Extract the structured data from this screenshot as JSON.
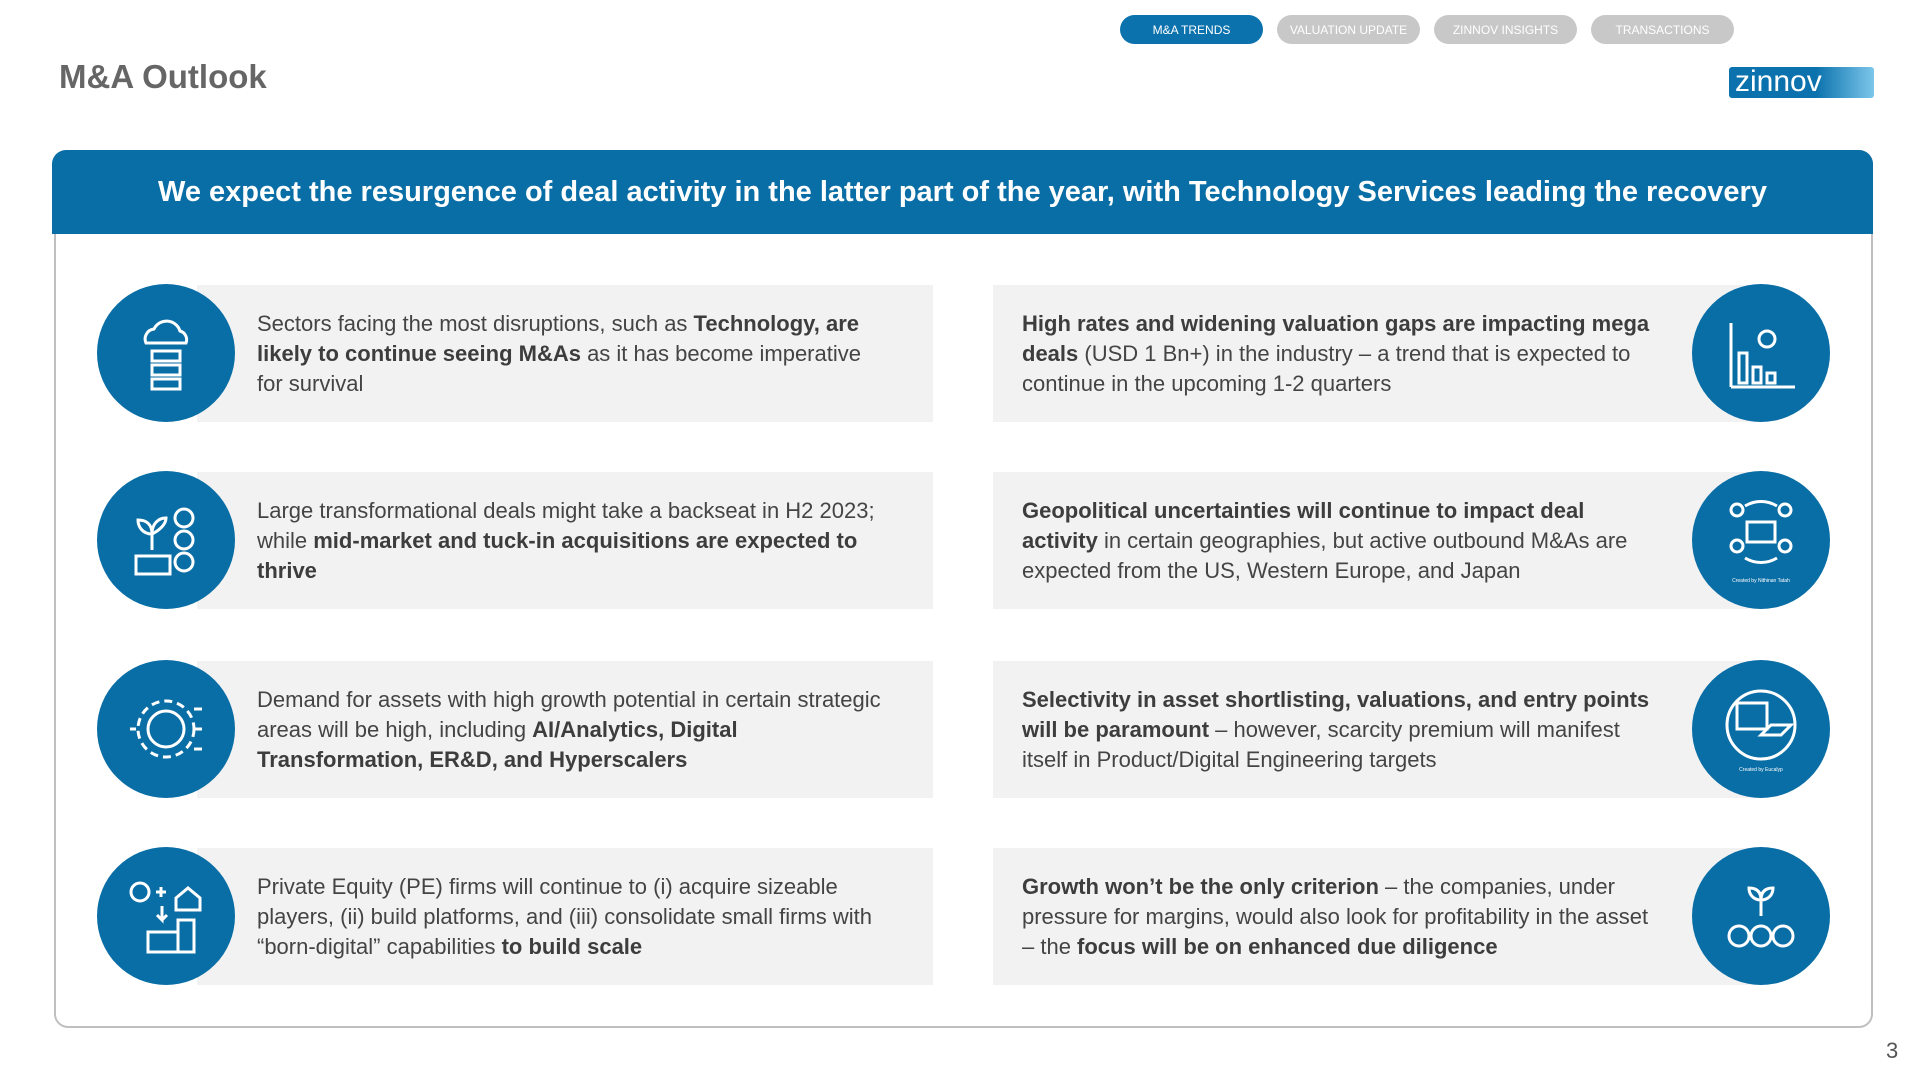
{
  "nav": [
    "M&A TRENDS",
    "VALUATION UPDATE",
    "ZINNOV INSIGHTS",
    "TRANSACTIONS"
  ],
  "active_nav": 0,
  "header": {
    "title": "M&A Outlook",
    "logo": "zinnov"
  },
  "banner": "We expect the resurgence of deal activity in the latter part of the year, with Technology Services leading the recovery",
  "left_cards": [
    {
      "segments": [
        {
          "text": "Sectors facing the most disruptions, such as ",
          "bold": false
        },
        {
          "text": "Technology, are likely to continue seeing M&As",
          "bold": true
        },
        {
          "text": " as it has become imperative for survival",
          "bold": false
        }
      ]
    },
    {
      "segments": [
        {
          "text": "Large transformational deals might take a backseat in H2 2023; while ",
          "bold": false
        },
        {
          "text": "mid-market and tuck-in acquisitions are expected to thrive",
          "bold": true
        }
      ]
    },
    {
      "segments": [
        {
          "text": "Demand for assets with high growth potential in certain strategic areas will be high, including ",
          "bold": false
        },
        {
          "text": "AI/Analytics, Digital Transformation, ER&D, and Hyperscalers",
          "bold": true
        }
      ]
    },
    {
      "segments": [
        {
          "text": "Private Equity (PE) firms will continue to (i) acquire sizeable players, (ii) build platforms, and (iii) consolidate small firms with “born-digital” capabilities ",
          "bold": false
        },
        {
          "text": "to build scale",
          "bold": true
        }
      ]
    }
  ],
  "right_cards": [
    {
      "segments": [
        {
          "text": "High rates and widening valuation gaps are impacting mega deals",
          "bold": true
        },
        {
          "text": " (USD 1 Bn+) in the industry – a trend that is expected to continue in the upcoming 1-2 quarters",
          "bold": false
        }
      ]
    },
    {
      "segments": [
        {
          "text": "Geopolitical uncertainties will continue to impact deal activity",
          "bold": true
        },
        {
          "text": " in certain geographies, but active outbound M&As are expected from the US, Western Europe, and Japan",
          "bold": false
        }
      ],
      "icon_credit": "Created by Nithinan Tatah"
    },
    {
      "segments": [
        {
          "text": "Selectivity in asset shortlisting, valuations, and entry points will be paramount",
          "bold": true
        },
        {
          "text": " – however, scarcity premium will manifest itself in Product/Digital Engineering targets",
          "bold": false
        }
      ],
      "icon_credit": "Created by Eucalyp"
    },
    {
      "segments": [
        {
          "text": "Growth won’t be the only criterion",
          "bold": true
        },
        {
          "text": " – the companies, under pressure for margins, would also look for profitability in the asset – the ",
          "bold": false
        },
        {
          "text": "focus will be on enhanced due diligence",
          "bold": true
        }
      ]
    }
  ],
  "page_number": "3"
}
